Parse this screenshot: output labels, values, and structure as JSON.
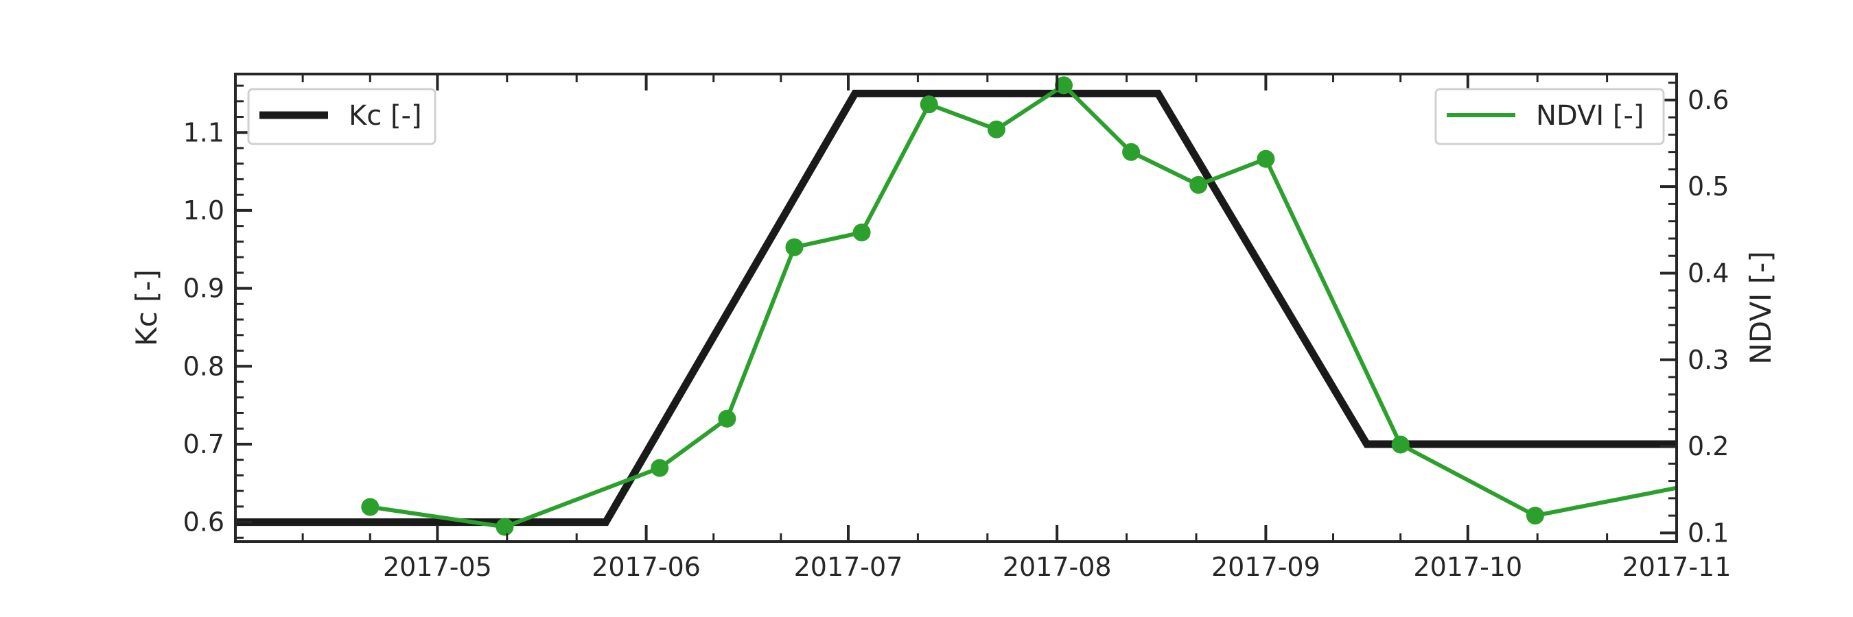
{
  "chart_data": {
    "type": "line",
    "x_axis": {
      "type": "date",
      "range": [
        "2017-04-01",
        "2017-11-01"
      ],
      "tick_labels": [
        "2017-05",
        "2017-06",
        "2017-07",
        "2017-08",
        "2017-09",
        "2017-10",
        "2017-11"
      ],
      "tick_dates": [
        "2017-05-01",
        "2017-06-01",
        "2017-07-01",
        "2017-08-01",
        "2017-09-01",
        "2017-10-01",
        "2017-11-01"
      ],
      "minor_ticks_per_month": 2
    },
    "y_left": {
      "label": "Kc [-]",
      "range": [
        0.575,
        1.175
      ],
      "ticks": [
        0.6,
        0.7,
        0.8,
        0.9,
        1.0,
        1.1
      ],
      "tick_labels": [
        "0.6",
        "0.7",
        "0.8",
        "0.9",
        "1.0",
        "1.1"
      ]
    },
    "y_right": {
      "label": "NDVI [-]",
      "range": [
        0.09,
        0.63
      ],
      "ticks": [
        0.1,
        0.2,
        0.3,
        0.4,
        0.5,
        0.6
      ],
      "tick_labels": [
        "0.1",
        "0.2",
        "0.3",
        "0.4",
        "0.5",
        "0.6"
      ]
    },
    "series": [
      {
        "name": "Kc [-]",
        "axis": "left",
        "color": "#1a1a1a",
        "markers": false,
        "x": [
          "2017-04-01",
          "2017-05-26",
          "2017-07-02",
          "2017-08-16",
          "2017-09-16",
          "2017-11-01"
        ],
        "y": [
          0.6,
          0.6,
          1.15,
          1.15,
          0.7,
          0.7
        ]
      },
      {
        "name": "NDVI [-]",
        "axis": "right",
        "color": "#2ca02c",
        "markers": true,
        "x": [
          "2017-04-21",
          "2017-05-11",
          "2017-06-03",
          "2017-06-13",
          "2017-06-23",
          "2017-07-03",
          "2017-07-13",
          "2017-07-23",
          "2017-08-02",
          "2017-08-12",
          "2017-08-22",
          "2017-09-01",
          "2017-09-21",
          "2017-10-11",
          "2017-11-01"
        ],
        "y": [
          0.13,
          0.107,
          0.175,
          0.232,
          0.43,
          0.447,
          0.595,
          0.566,
          0.617,
          0.54,
          0.502,
          0.532,
          0.202,
          0.12,
          0.152
        ],
        "marker_last_point": false
      }
    ],
    "legend_left": {
      "label": "Kc [-]",
      "position": "upper left"
    },
    "legend_right": {
      "label": "NDVI [-]",
      "position": "upper right"
    },
    "grid": false
  }
}
